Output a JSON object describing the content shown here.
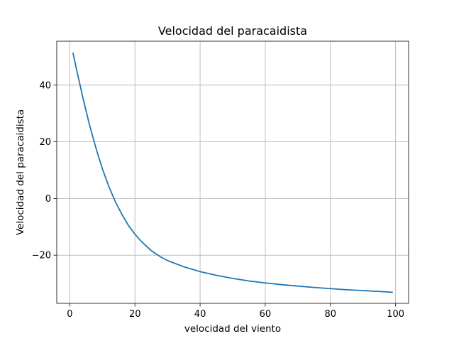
{
  "chart_data": {
    "type": "line",
    "title": "Velocidad del paracaidista",
    "xlabel": "velocidad del viento",
    "ylabel": "Velocidad del paracaidista",
    "xlim": [
      -4,
      104
    ],
    "ylim": [
      -37,
      55.5
    ],
    "xticks": [
      0,
      20,
      40,
      60,
      80,
      100
    ],
    "yticks": [
      -20,
      0,
      20,
      40
    ],
    "grid": true,
    "series": [
      {
        "color": "#1f77b4",
        "x": [
          1,
          2,
          4,
          6,
          8,
          10,
          12,
          14,
          16,
          18,
          20,
          22,
          25,
          28,
          30,
          35,
          40,
          45,
          50,
          55,
          60,
          65,
          70,
          75,
          80,
          85,
          90,
          95,
          99
        ],
        "y": [
          51.3,
          45.9,
          35.7,
          26.2,
          17.9,
          10.5,
          4.2,
          -1.2,
          -5.6,
          -9.5,
          -12.6,
          -15.2,
          -18.4,
          -20.7,
          -21.9,
          -24.1,
          -25.8,
          -27.1,
          -28.2,
          -29.1,
          -29.8,
          -30.4,
          -30.9,
          -31.4,
          -31.8,
          -32.2,
          -32.5,
          -32.8,
          -33.1
        ]
      }
    ]
  }
}
